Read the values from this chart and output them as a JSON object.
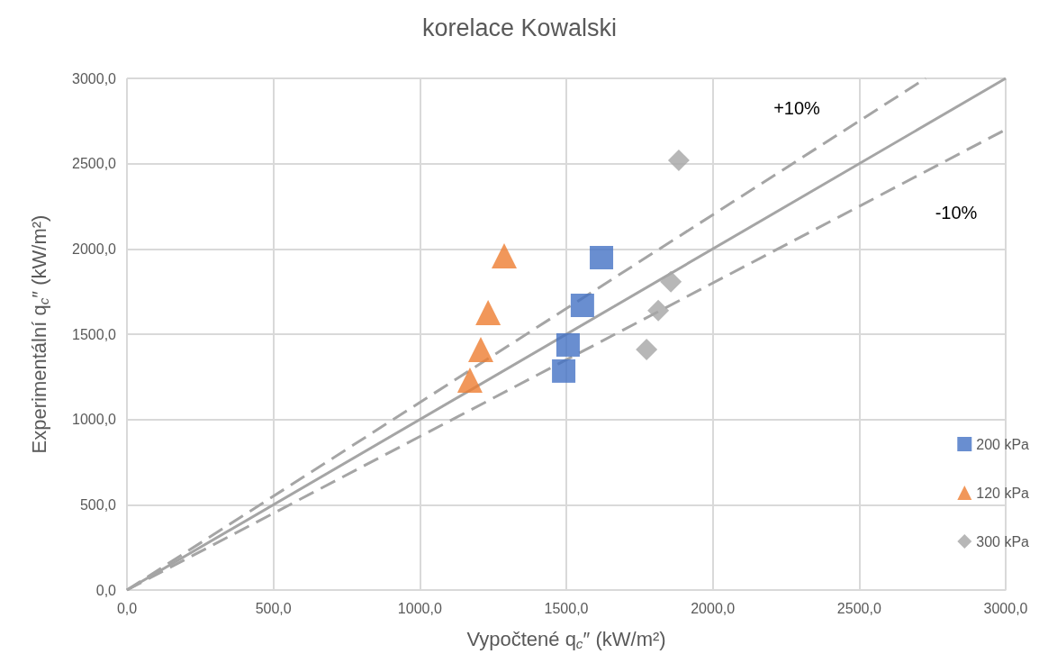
{
  "chart_data": {
    "type": "scatter",
    "title": "korelace Kowalski",
    "xlabel": "Vypočtené q$_{c}$″ (kW/m²)",
    "ylabel": "Experimentální q$_{c}$″ (kW/m²)",
    "xlim": [
      0,
      3000
    ],
    "ylim": [
      0,
      3000
    ],
    "xticks": [
      {
        "value": 0,
        "label": "0,0"
      },
      {
        "value": 500,
        "label": "500,0"
      },
      {
        "value": 1000,
        "label": "1000,0"
      },
      {
        "value": 1500,
        "label": "1500,0"
      },
      {
        "value": 2000,
        "label": "2000,0"
      },
      {
        "value": 2500,
        "label": "2500,0"
      },
      {
        "value": 3000,
        "label": "3000,0"
      }
    ],
    "yticks": [
      {
        "value": 0,
        "label": "0,0"
      },
      {
        "value": 500,
        "label": "500,0"
      },
      {
        "value": 1000,
        "label": "1000,0"
      },
      {
        "value": 1500,
        "label": "1500,0"
      },
      {
        "value": 2000,
        "label": "2000,0"
      },
      {
        "value": 2500,
        "label": "2500,0"
      },
      {
        "value": 3000,
        "label": "3000,0"
      }
    ],
    "grid": true,
    "legend": "right",
    "series": [
      {
        "name": "200 kPa",
        "color": "#4472c4",
        "marker": "square",
        "x": [
          1620,
          1555,
          1506,
          1491
        ],
        "values": [
          1949,
          1669,
          1437,
          1284
        ]
      },
      {
        "name": "120 kPa",
        "color": "#ed7d31",
        "marker": "triangle",
        "x": [
          1288,
          1233,
          1208,
          1171
        ],
        "values": [
          1960,
          1627,
          1410,
          1231
        ]
      },
      {
        "name": "300 kPa",
        "color": "#a5a5a5",
        "marker": "diamond",
        "x": [
          1884,
          1857,
          1814,
          1774
        ],
        "values": [
          2520,
          1807,
          1638,
          1410
        ]
      },
      {
        "type": "line",
        "color": "#a5a5a5",
        "line_style": "solid",
        "marker": "none",
        "x": [
          0,
          3000
        ],
        "values": [
          0,
          3000
        ]
      },
      {
        "type": "line",
        "color": "#a5a5a5",
        "line_style": "dashed",
        "marker": "none",
        "x": [
          0,
          2727
        ],
        "values": [
          0,
          3000
        ]
      },
      {
        "type": "line",
        "color": "#a5a5a5",
        "line_style": "dashed",
        "marker": "none",
        "x": [
          0,
          3000
        ],
        "values": [
          0,
          2700
        ]
      }
    ],
    "annotations": [
      "+10%",
      "-10%"
    ]
  }
}
